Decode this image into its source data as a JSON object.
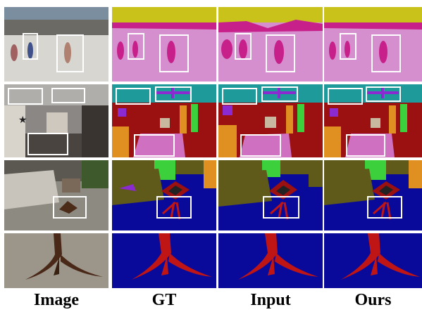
{
  "figure": {
    "columns": [
      "Image",
      "GT",
      "Input",
      "Ours"
    ],
    "rows": [
      "beach-people",
      "bedroom",
      "living-room",
      "table-leg-closeup"
    ]
  },
  "colors": {
    "sky_yellow": "#c9c21a",
    "ground_pink": "#d58fcf",
    "person_magenta": "#c8208a",
    "ceiling_teal": "#1e9a9a",
    "wall_red": "#9b1010",
    "floor_blue": "#0a0a9a",
    "bed_pink": "#d070c0",
    "sofa_olive": "#5f5a1a",
    "table_red": "#c01515",
    "plant_green": "#3cd03c",
    "lamp_purple": "#8a2ad0",
    "lamp_orange": "#e09020"
  }
}
